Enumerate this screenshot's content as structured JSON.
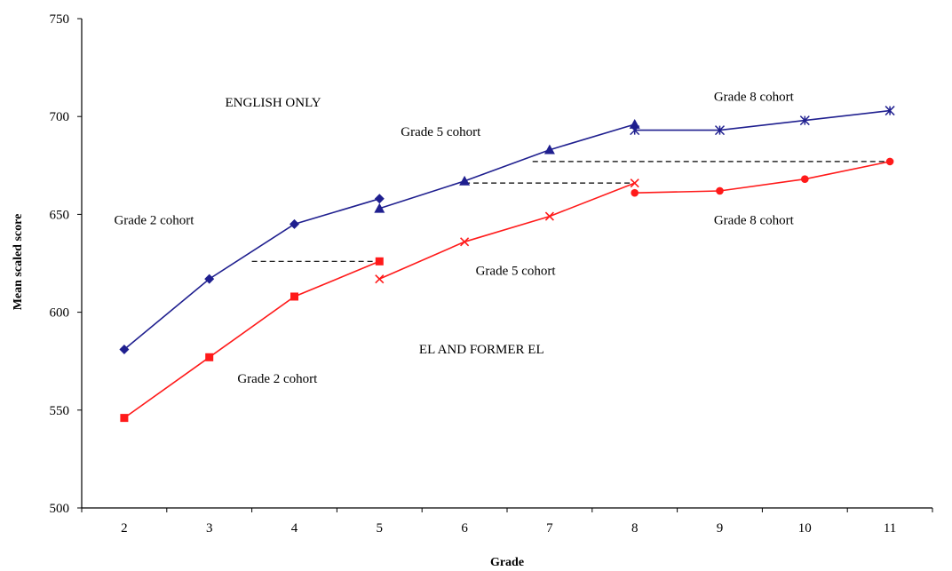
{
  "chart_data": {
    "type": "line",
    "title": "",
    "xlabel": "Grade",
    "ylabel": "Mean scaled score",
    "xlim": [
      1.5,
      11.5
    ],
    "ylim": [
      500,
      750
    ],
    "x_ticks": [
      2,
      3,
      4,
      5,
      6,
      7,
      8,
      9,
      10,
      11
    ],
    "y_ticks": [
      500,
      550,
      600,
      650,
      700,
      750
    ],
    "grid": false,
    "legend": "none",
    "series": [
      {
        "group": "english-only",
        "color": "#1f1f8f",
        "marker": "diamond",
        "points": [
          [
            2,
            581
          ],
          [
            3,
            617
          ],
          [
            4,
            645
          ],
          [
            5,
            658
          ]
        ]
      },
      {
        "group": "english-only",
        "color": "#1f1f8f",
        "marker": "triangle",
        "points": [
          [
            5,
            653
          ],
          [
            6,
            667
          ],
          [
            7,
            683
          ],
          [
            8,
            696
          ]
        ]
      },
      {
        "group": "english-only",
        "color": "#1f1f8f",
        "marker": "asterisk",
        "points": [
          [
            8,
            693
          ],
          [
            9,
            693
          ],
          [
            10,
            698
          ],
          [
            11,
            703
          ]
        ]
      },
      {
        "group": "el-and-former-el",
        "color": "#ff1a1a",
        "marker": "square",
        "points": [
          [
            2,
            546
          ],
          [
            3,
            577
          ],
          [
            4,
            608
          ],
          [
            5,
            626
          ]
        ]
      },
      {
        "group": "el-and-former-el",
        "color": "#ff1a1a",
        "marker": "x",
        "points": [
          [
            5,
            617
          ],
          [
            6,
            636
          ],
          [
            7,
            649
          ],
          [
            8,
            666
          ]
        ]
      },
      {
        "group": "el-and-former-el",
        "color": "#ff1a1a",
        "marker": "circle",
        "points": [
          [
            8,
            661
          ],
          [
            9,
            662
          ],
          [
            10,
            668
          ],
          [
            11,
            677
          ]
        ]
      }
    ],
    "reference_lines": [
      {
        "x1": 3.5,
        "x2": 5,
        "y": 626,
        "color": "#000000"
      },
      {
        "x1": 6,
        "x2": 8,
        "y": 666,
        "color": "#000000"
      },
      {
        "x1": 6.8,
        "x2": 11,
        "y": 677,
        "color": "#000000"
      }
    ],
    "annotations": [
      {
        "text": "ENGLISH ONLY",
        "x": 3.75,
        "y": 705
      },
      {
        "text": "Grade 8 cohort",
        "x": 9.4,
        "y": 708
      },
      {
        "text": "Grade 5 cohort",
        "x": 5.72,
        "y": 690
      },
      {
        "text": "Grade 2 cohort",
        "x": 2.35,
        "y": 645
      },
      {
        "text": "Grade 8 cohort",
        "x": 9.4,
        "y": 645
      },
      {
        "text": "Grade 5 cohort",
        "x": 6.6,
        "y": 619
      },
      {
        "text": "EL AND FORMER EL",
        "x": 6.2,
        "y": 579
      },
      {
        "text": "Grade 2 cohort",
        "x": 3.8,
        "y": 564
      }
    ]
  }
}
